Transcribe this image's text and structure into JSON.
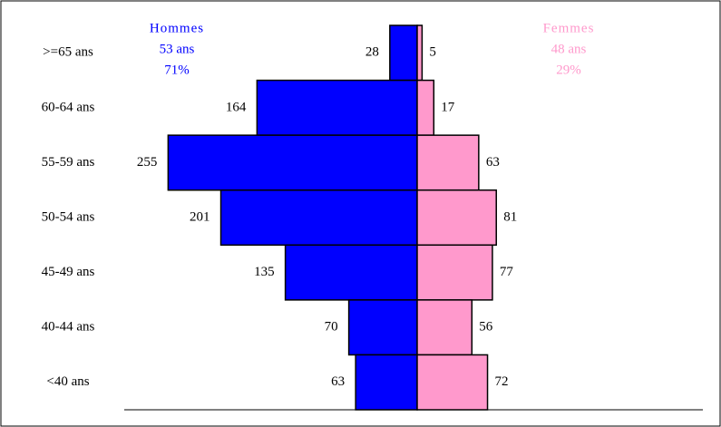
{
  "chart_data": {
    "type": "pyramid",
    "categories": [
      ">=65 ans",
      "60-64 ans",
      "55-59 ans",
      "50-54 ans",
      "45-49 ans",
      "40-44 ans",
      "<40 ans"
    ],
    "series": [
      {
        "name": "Hommes",
        "color": "#0000ff",
        "values": [
          28,
          164,
          255,
          201,
          135,
          70,
          63
        ]
      },
      {
        "name": "Femmes",
        "color": "#ff99cc",
        "values": [
          5,
          17,
          63,
          81,
          77,
          56,
          72
        ]
      }
    ],
    "annotations": [
      [
        "53 ans",
        "71%"
      ],
      [
        "48 ans",
        "29%"
      ]
    ]
  }
}
